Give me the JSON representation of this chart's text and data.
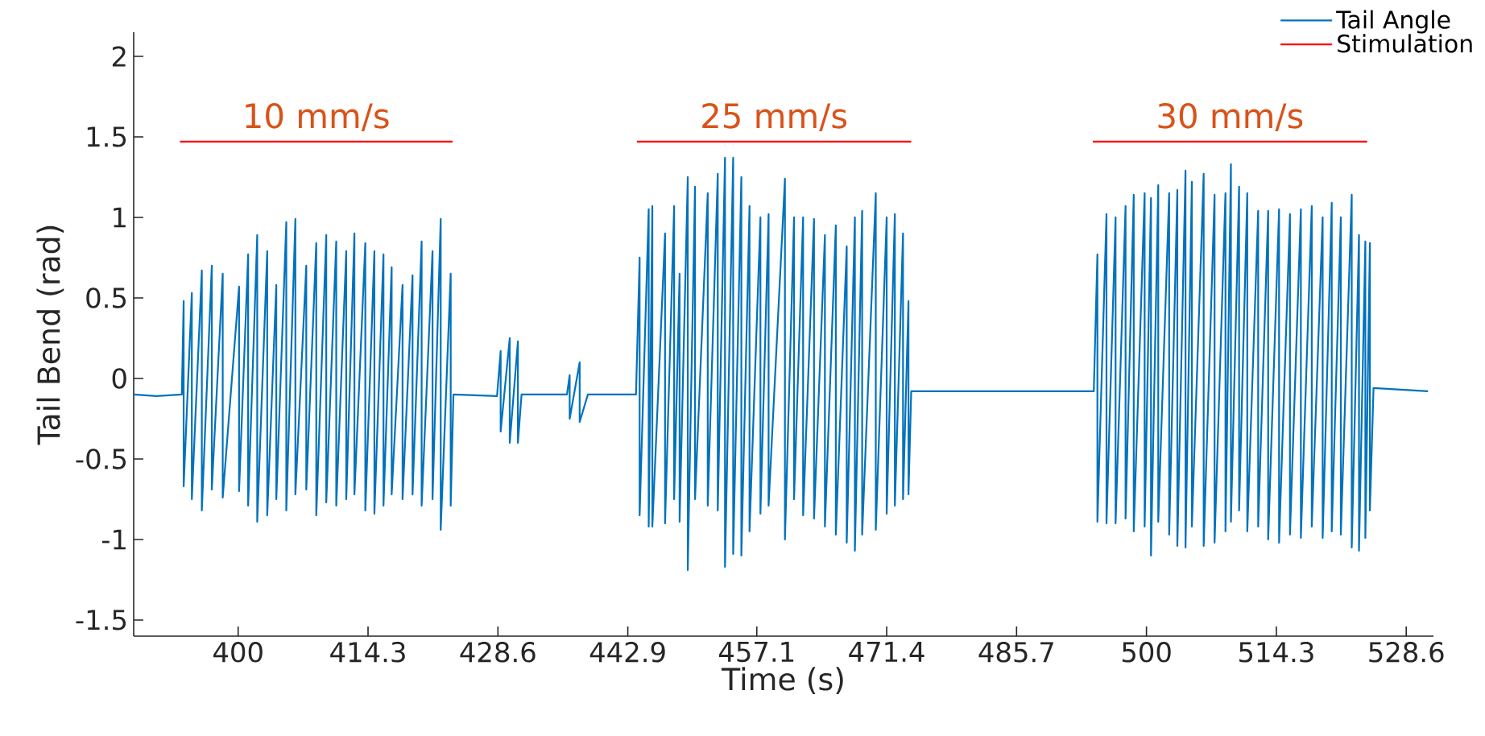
{
  "chart_data": {
    "type": "line",
    "xlabel": "Time (s)",
    "ylabel": "Tail Bend (rad)",
    "xlim": [
      388.5,
      531.6
    ],
    "ylim": [
      -1.6,
      2.15
    ],
    "xticks": [
      400,
      414.3,
      428.6,
      442.9,
      457.1,
      471.4,
      485.7,
      500,
      514.3,
      528.6
    ],
    "yticks": [
      -1.5,
      -1,
      -0.5,
      0,
      0.5,
      1,
      1.5,
      2
    ],
    "legend": "top right",
    "series": [
      {
        "name": "Tail Angle",
        "color": "#0072bd",
        "x": [
          388.5,
          391.0,
          393.8,
          394.0,
          394.0,
          394.9,
          394.9,
          396.0,
          396.0,
          397.1,
          397.1,
          398.3,
          398.3,
          400.1,
          400.1,
          401.1,
          401.1,
          402.1,
          402.1,
          403.2,
          403.2,
          404.2,
          404.2,
          405.3,
          405.3,
          406.3,
          406.3,
          407.5,
          407.5,
          408.6,
          408.6,
          409.7,
          409.7,
          410.8,
          410.8,
          411.9,
          411.9,
          412.8,
          412.8,
          414.0,
          414.0,
          415.0,
          415.0,
          416.0,
          416.0,
          416.9,
          416.9,
          418.1,
          418.1,
          419.2,
          419.2,
          420.2,
          420.2,
          421.4,
          421.4,
          422.3,
          422.3,
          423.4,
          423.4,
          423.7,
          428.5,
          428.9,
          428.9,
          429.9,
          429.9,
          430.8,
          430.8,
          431.2,
          436.2,
          436.5,
          436.5,
          437.6,
          437.6,
          438.5,
          443.8,
          444.2,
          444.2,
          445.2,
          445.2,
          445.6,
          445.6,
          447.0,
          447.0,
          448.0,
          448.0,
          448.6,
          448.6,
          449.5,
          449.5,
          450.3,
          450.3,
          451.7,
          451.7,
          452.8,
          452.8,
          453.6,
          453.6,
          454.5,
          454.5,
          455.4,
          455.4,
          456.3,
          456.3,
          457.5,
          457.5,
          458.4,
          458.4,
          460.2,
          460.2,
          461.2,
          461.2,
          462.2,
          462.2,
          463.4,
          463.4,
          464.6,
          464.6,
          465.8,
          465.8,
          467.0,
          467.0,
          467.9,
          467.9,
          468.7,
          468.7,
          470.2,
          470.2,
          471.4,
          471.4,
          472.3,
          472.3,
          473.2,
          473.2,
          473.8,
          473.8,
          474.1,
          484.0,
          494.2,
          494.6,
          494.6,
          495.6,
          495.6,
          496.6,
          496.6,
          497.7,
          497.7,
          498.6,
          498.6,
          499.8,
          499.8,
          500.5,
          500.5,
          501.3,
          501.3,
          502.5,
          502.5,
          503.4,
          503.4,
          504.3,
          504.3,
          505.0,
          505.0,
          506.3,
          506.3,
          507.5,
          507.5,
          508.7,
          508.7,
          509.3,
          509.3,
          510.2,
          510.2,
          511.1,
          511.1,
          512.3,
          512.3,
          513.4,
          513.4,
          514.6,
          514.6,
          515.8,
          515.8,
          517.0,
          517.0,
          518.2,
          518.2,
          519.4,
          519.4,
          520.4,
          520.4,
          521.4,
          521.4,
          522.6,
          522.6,
          523.4,
          523.4,
          524.1,
          524.1,
          524.6,
          524.6,
          525.0,
          531.0
        ],
        "values": [
          -0.1,
          -0.11,
          -0.1,
          0.48,
          -0.67,
          0.53,
          -0.75,
          0.67,
          -0.82,
          0.7,
          -0.69,
          0.65,
          -0.74,
          0.57,
          -0.7,
          0.77,
          -0.79,
          0.89,
          -0.89,
          0.79,
          -0.85,
          0.58,
          -0.75,
          0.97,
          -0.82,
          0.99,
          -0.72,
          0.7,
          -0.69,
          0.84,
          -0.85,
          0.89,
          -0.77,
          0.85,
          -0.79,
          0.79,
          -0.75,
          0.9,
          -0.72,
          0.84,
          -0.82,
          0.79,
          -0.84,
          0.77,
          -0.79,
          0.69,
          -0.72,
          0.58,
          -0.75,
          0.64,
          -0.72,
          0.85,
          -0.79,
          0.79,
          -0.75,
          0.99,
          -0.94,
          0.65,
          -0.79,
          -0.1,
          -0.11,
          0.17,
          -0.33,
          0.25,
          -0.4,
          0.23,
          -0.4,
          -0.1,
          -0.1,
          0.02,
          -0.25,
          0.1,
          -0.27,
          -0.1,
          -0.1,
          0.75,
          -0.85,
          1.05,
          -0.92,
          1.07,
          -0.92,
          0.9,
          -0.9,
          1.07,
          -0.75,
          0.65,
          -0.89,
          1.25,
          -1.19,
          1.19,
          -0.75,
          1.15,
          -0.79,
          1.27,
          -0.82,
          1.37,
          -1.17,
          1.37,
          -1.09,
          1.25,
          -1.1,
          1.07,
          -0.95,
          1.0,
          -0.84,
          1.02,
          -0.79,
          1.24,
          -1.0,
          1.0,
          -0.75,
          1.0,
          -0.85,
          0.99,
          -0.87,
          0.89,
          -0.92,
          0.95,
          -0.97,
          0.82,
          -1.02,
          1.0,
          -1.07,
          1.04,
          -0.97,
          1.15,
          -0.94,
          1.0,
          -0.84,
          1.02,
          -0.79,
          0.9,
          -0.75,
          0.48,
          -0.72,
          -0.08,
          -0.08,
          -0.08,
          0.77,
          -0.89,
          1.02,
          -0.9,
          1.0,
          -0.9,
          1.07,
          -0.87,
          1.14,
          -0.95,
          1.15,
          -0.92,
          1.12,
          -1.1,
          1.2,
          -0.89,
          1.15,
          -0.97,
          1.17,
          -1.04,
          1.29,
          -1.05,
          1.22,
          -0.92,
          1.27,
          -1.04,
          1.14,
          -1.02,
          1.15,
          -0.95,
          1.33,
          -0.89,
          1.19,
          -0.82,
          1.15,
          -0.95,
          1.04,
          -0.92,
          1.04,
          -1.0,
          1.05,
          -1.02,
          1.02,
          -0.97,
          1.05,
          -0.99,
          1.07,
          -0.92,
          1.0,
          -0.99,
          1.09,
          -0.95,
          1.0,
          -0.97,
          1.14,
          -1.05,
          0.89,
          -1.07,
          0.85,
          -0.99,
          0.84,
          -0.82,
          -0.06,
          -0.08
        ]
      },
      {
        "name": "Stimulation",
        "color": "#ff0000",
        "x": [
          393.6,
          423.6,
          423.7,
          443.9,
          474.1,
          474.2,
          494.1,
          524.3
        ],
        "values": [
          1.47,
          1.47,
          null,
          1.47,
          1.47,
          null,
          1.47,
          1.47
        ]
      }
    ],
    "annotations": [
      "10 mm/s",
      "25 mm/s",
      "30 mm/s"
    ]
  }
}
